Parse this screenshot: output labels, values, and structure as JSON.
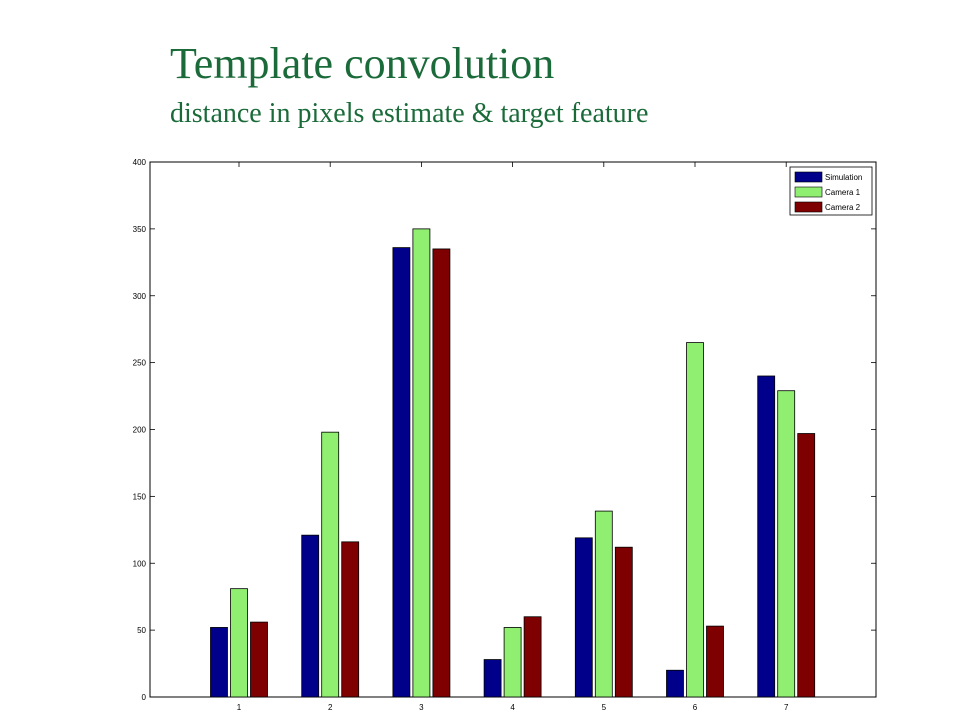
{
  "slide": {
    "title": "Template convolution",
    "subtitle": "distance in pixels estimate & target feature"
  },
  "chart_data": {
    "type": "bar",
    "title": "",
    "xlabel": "",
    "ylabel": "",
    "categories": [
      "1",
      "2",
      "3",
      "4",
      "5",
      "6",
      "7"
    ],
    "ylim": [
      0,
      400
    ],
    "yticks": [
      0,
      50,
      100,
      150,
      200,
      250,
      300,
      350,
      400
    ],
    "grid": false,
    "legend_position": "top-right",
    "series": [
      {
        "name": "Simulation",
        "color": "#00008b",
        "values": [
          52,
          121,
          336,
          28,
          119,
          20,
          240
        ]
      },
      {
        "name": "Camera 1",
        "color": "#90ee70",
        "values": [
          81,
          198,
          350,
          52,
          139,
          265,
          229
        ]
      },
      {
        "name": "Camera 2",
        "color": "#7f0000",
        "values": [
          56,
          116,
          335,
          60,
          112,
          53,
          197
        ]
      }
    ]
  }
}
